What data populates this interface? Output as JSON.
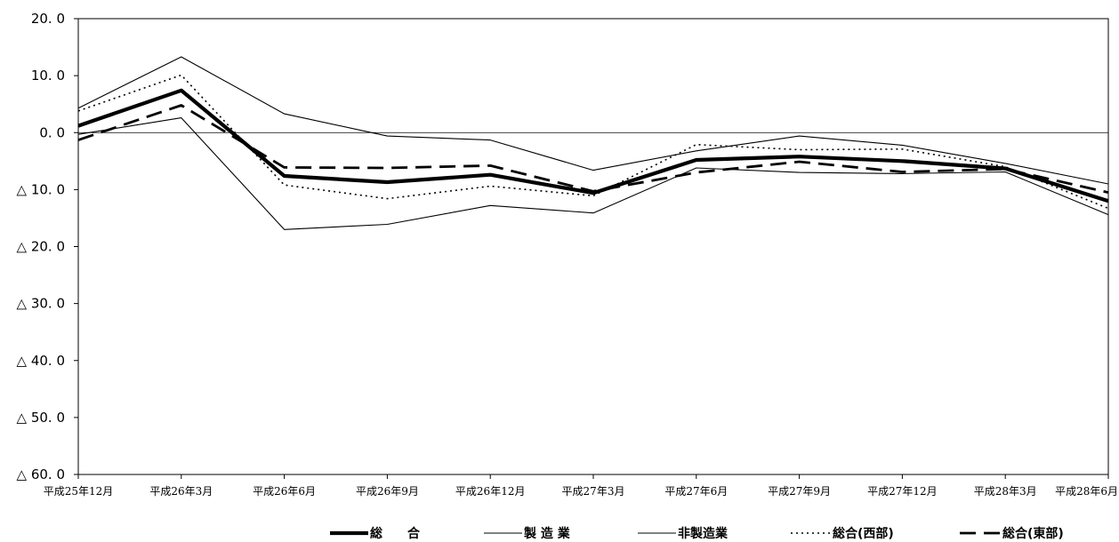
{
  "chart_data": {
    "type": "line",
    "categories": [
      "平成25年12月",
      "平成26年3月",
      "平成26年6月",
      "平成26年9月",
      "平成26年12月",
      "平成27年3月",
      "平成27年6月",
      "平成27年9月",
      "平成27年12月",
      "平成28年3月",
      "平成28年6月"
    ],
    "y_tick_labels": [
      "20. 0",
      "10. 0",
      "0. 0",
      "△ 10. 0",
      "△ 20. 0",
      "△ 30. 0",
      "△ 40. 0",
      "△ 50. 0",
      "△ 60. 0"
    ],
    "y_ticks": [
      20,
      10,
      0,
      -10,
      -20,
      -30,
      -40,
      -50,
      -60
    ],
    "ylim": [
      -60,
      20
    ],
    "zero_line": true,
    "legend_position": "bottom",
    "series": [
      {
        "name": "総　　合",
        "style": "thick",
        "values": [
          1.2,
          7.4,
          -7.6,
          -8.7,
          -7.4,
          -10.6,
          -4.8,
          -4.2,
          -5.0,
          -6.3,
          -12.0
        ]
      },
      {
        "name": "製 造 業",
        "style": "thin",
        "values": [
          4.3,
          13.3,
          3.3,
          -0.6,
          -1.3,
          -6.6,
          -3.2,
          -0.6,
          -2.2,
          -5.4,
          -9.0
        ]
      },
      {
        "name": "非製造業",
        "style": "thin",
        "values": [
          -0.3,
          2.6,
          -17.0,
          -16.1,
          -12.8,
          -14.1,
          -6.2,
          -7.0,
          -7.2,
          -6.9,
          -14.4
        ]
      },
      {
        "name": "総合(西部)",
        "style": "dotted",
        "values": [
          3.8,
          10.1,
          -9.2,
          -11.6,
          -9.4,
          -11.1,
          -2.1,
          -3.0,
          -2.9,
          -6.0,
          -13.3
        ]
      },
      {
        "name": "総合(東部)",
        "style": "dashed",
        "values": [
          -1.3,
          4.8,
          -6.1,
          -6.2,
          -5.8,
          -10.3,
          -7.0,
          -5.1,
          -6.9,
          -6.4,
          -10.5
        ]
      }
    ]
  }
}
